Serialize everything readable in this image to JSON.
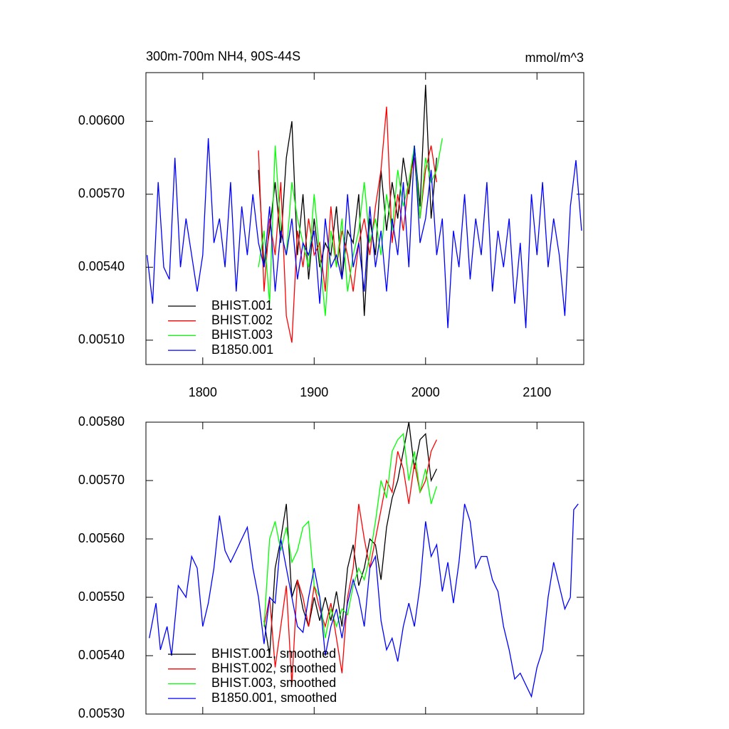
{
  "chart_data": [
    {
      "type": "line",
      "title": "300m-700m NH4, 90S-44S",
      "units": "mmol/m^3",
      "xlim": [
        1749,
        2142
      ],
      "xticks": [
        1800,
        1900,
        2000,
        2100
      ],
      "ylim": [
        0.005,
        0.0062
      ],
      "yticks": [
        {
          "value": 0.0051,
          "label": "0.00510"
        },
        {
          "value": 0.0054,
          "label": "0.00540"
        },
        {
          "value": 0.0057,
          "label": "0.00570"
        },
        {
          "value": 0.006,
          "label": "0.00600"
        }
      ],
      "legend": "lower left",
      "series": [
        {
          "name": "BHIST.001",
          "color": "#000000",
          "x": [
            1850,
            1855,
            1860,
            1865,
            1870,
            1875,
            1880,
            1885,
            1890,
            1895,
            1900,
            1905,
            1910,
            1915,
            1920,
            1925,
            1930,
            1935,
            1940,
            1945,
            1950,
            1955,
            1960,
            1965,
            1970,
            1975,
            1980,
            1985,
            1990,
            1995,
            2000,
            2005,
            2010
          ],
          "values": [
            0.0058,
            0.0054,
            0.00555,
            0.00575,
            0.0055,
            0.00585,
            0.006,
            0.00545,
            0.0057,
            0.00535,
            0.0056,
            0.0054,
            0.0055,
            0.00545,
            0.00565,
            0.00535,
            0.00555,
            0.0055,
            0.0057,
            0.0052,
            0.0056,
            0.00545,
            0.0058,
            0.00555,
            0.00575,
            0.0056,
            0.00585,
            0.0057,
            0.0059,
            0.00565,
            0.00615,
            0.0056,
            0.00585
          ]
        },
        {
          "name": "BHIST.002",
          "color": "#ff0000",
          "x": [
            1850,
            1855,
            1860,
            1865,
            1870,
            1875,
            1880,
            1885,
            1890,
            1895,
            1900,
            1905,
            1910,
            1915,
            1920,
            1925,
            1930,
            1935,
            1940,
            1945,
            1950,
            1955,
            1960,
            1965,
            1970,
            1975,
            1980,
            1985,
            1990,
            1995,
            2000,
            2005,
            2010
          ],
          "values": [
            0.00588,
            0.0053,
            0.0056,
            0.00545,
            0.00575,
            0.0052,
            0.00509,
            0.00555,
            0.0054,
            0.0056,
            0.00545,
            0.0055,
            0.0053,
            0.00565,
            0.0054,
            0.00555,
            0.00545,
            0.0053,
            0.0055,
            0.0056,
            0.00545,
            0.00565,
            0.0058,
            0.00606,
            0.0055,
            0.0057,
            0.00555,
            0.00575,
            0.00585,
            0.0056,
            0.0058,
            0.0059,
            0.00575
          ]
        },
        {
          "name": "BHIST.003",
          "color": "#00ff00",
          "x": [
            1850,
            1855,
            1860,
            1865,
            1870,
            1875,
            1880,
            1885,
            1890,
            1895,
            1900,
            1905,
            1910,
            1915,
            1920,
            1925,
            1930,
            1935,
            1940,
            1945,
            1950,
            1955,
            1960,
            1965,
            1970,
            1975,
            1980,
            1985,
            1990,
            1995,
            2000,
            2005,
            2010,
            2015
          ],
          "values": [
            0.0054,
            0.00555,
            0.00525,
            0.0059,
            0.00555,
            0.00545,
            0.00575,
            0.0056,
            0.0055,
            0.0054,
            0.0057,
            0.00545,
            0.0052,
            0.00555,
            0.0054,
            0.0056,
            0.0053,
            0.00545,
            0.00555,
            0.00575,
            0.0055,
            0.0056,
            0.00545,
            0.0057,
            0.00555,
            0.0058,
            0.00565,
            0.00575,
            0.0059,
            0.0056,
            0.00585,
            0.00575,
            0.0058,
            0.00593
          ]
        },
        {
          "name": "B1850.001",
          "color": "#0000ff",
          "x": [
            1750,
            1755,
            1760,
            1765,
            1770,
            1775,
            1780,
            1785,
            1790,
            1795,
            1800,
            1805,
            1810,
            1815,
            1820,
            1825,
            1830,
            1835,
            1840,
            1845,
            1850,
            1855,
            1860,
            1865,
            1870,
            1875,
            1880,
            1885,
            1890,
            1895,
            1900,
            1905,
            1910,
            1915,
            1920,
            1925,
            1930,
            1935,
            1940,
            1945,
            1950,
            1955,
            1960,
            1965,
            1970,
            1975,
            1980,
            1985,
            1990,
            1995,
            2000,
            2005,
            2010,
            2015,
            2020,
            2025,
            2030,
            2035,
            2040,
            2045,
            2050,
            2055,
            2060,
            2065,
            2070,
            2075,
            2080,
            2085,
            2090,
            2095,
            2100,
            2105,
            2110,
            2115,
            2120,
            2125,
            2130,
            2135,
            2140
          ],
          "values": [
            0.00545,
            0.00525,
            0.00575,
            0.0054,
            0.00535,
            0.00585,
            0.0054,
            0.0056,
            0.00545,
            0.0053,
            0.00545,
            0.00593,
            0.0055,
            0.0056,
            0.0054,
            0.00575,
            0.0053,
            0.00565,
            0.00545,
            0.0057,
            0.0055,
            0.0054,
            0.00565,
            0.0053,
            0.00555,
            0.00545,
            0.0056,
            0.00535,
            0.0055,
            0.00545,
            0.00555,
            0.00525,
            0.0056,
            0.0054,
            0.00545,
            0.00535,
            0.0057,
            0.0054,
            0.0055,
            0.0053,
            0.00565,
            0.0054,
            0.00555,
            0.0053,
            0.0056,
            0.00545,
            0.00575,
            0.0054,
            0.0059,
            0.0055,
            0.0056,
            0.0058,
            0.00545,
            0.0056,
            0.00515,
            0.00555,
            0.0054,
            0.0057,
            0.00535,
            0.0056,
            0.00545,
            0.00575,
            0.0053,
            0.00555,
            0.0054,
            0.0056,
            0.00525,
            0.0055,
            0.00515,
            0.0057,
            0.00545,
            0.00575,
            0.0054,
            0.0056,
            0.00545,
            0.0052,
            0.00565,
            0.00584,
            0.00555
          ]
        }
      ]
    },
    {
      "type": "line",
      "xlim": [
        1749,
        2142
      ],
      "ylim": [
        0.0053,
        0.0058
      ],
      "yticks": [
        {
          "value": 0.0053,
          "label": "0.00530"
        },
        {
          "value": 0.0054,
          "label": "0.00540"
        },
        {
          "value": 0.0055,
          "label": "0.00550"
        },
        {
          "value": 0.0056,
          "label": "0.00560"
        },
        {
          "value": 0.0057,
          "label": "0.00570"
        },
        {
          "value": 0.0058,
          "label": "0.00580"
        }
      ],
      "legend": "lower left",
      "series": [
        {
          "name": "BHIST.001, smoothed",
          "color": "#000000",
          "x": [
            1855,
            1860,
            1865,
            1870,
            1875,
            1880,
            1885,
            1890,
            1895,
            1900,
            1905,
            1910,
            1915,
            1920,
            1925,
            1930,
            1935,
            1940,
            1945,
            1950,
            1955,
            1960,
            1965,
            1970,
            1975,
            1980,
            1985,
            1990,
            1995,
            2000,
            2005,
            2010
          ],
          "values": [
            0.00546,
            0.0054,
            0.00555,
            0.0056,
            0.00566,
            0.0055,
            0.00553,
            0.00548,
            0.00545,
            0.0055,
            0.00546,
            0.0055,
            0.00546,
            0.00551,
            0.00545,
            0.00555,
            0.00559,
            0.00552,
            0.00555,
            0.0056,
            0.00559,
            0.00553,
            0.00562,
            0.00567,
            0.0057,
            0.00575,
            0.0058,
            0.00572,
            0.00577,
            0.00578,
            0.0057,
            0.00572
          ]
        },
        {
          "name": "BHIST.002, smoothed",
          "color": "#ff0000",
          "x": [
            1855,
            1860,
            1865,
            1870,
            1875,
            1880,
            1885,
            1890,
            1895,
            1900,
            1905,
            1910,
            1915,
            1920,
            1925,
            1930,
            1935,
            1940,
            1945,
            1950,
            1955,
            1960,
            1965,
            1970,
            1975,
            1980,
            1985,
            1990,
            1995,
            2000,
            2005,
            2010
          ],
          "values": [
            0.00545,
            0.0055,
            0.00538,
            0.00545,
            0.00552,
            0.00535,
            0.00553,
            0.0055,
            0.00545,
            0.00552,
            0.00548,
            0.00545,
            0.00549,
            0.00543,
            0.00537,
            0.0055,
            0.00555,
            0.00566,
            0.0056,
            0.00555,
            0.0056,
            0.00565,
            0.0057,
            0.00568,
            0.00575,
            0.00572,
            0.00566,
            0.00573,
            0.00568,
            0.0057,
            0.00575,
            0.00577
          ]
        },
        {
          "name": "BHIST.003, smoothed",
          "color": "#00ff00",
          "x": [
            1855,
            1860,
            1865,
            1870,
            1875,
            1880,
            1885,
            1890,
            1895,
            1900,
            1905,
            1910,
            1915,
            1920,
            1925,
            1930,
            1935,
            1940,
            1945,
            1950,
            1955,
            1960,
            1965,
            1970,
            1975,
            1980,
            1985,
            1990,
            1995,
            2000,
            2005,
            2010
          ],
          "values": [
            0.00545,
            0.0056,
            0.00563,
            0.00558,
            0.00562,
            0.00556,
            0.00558,
            0.00562,
            0.00563,
            0.00552,
            0.0055,
            0.00543,
            0.00548,
            0.00545,
            0.00548,
            0.00547,
            0.00552,
            0.00555,
            0.00553,
            0.00557,
            0.00563,
            0.0057,
            0.00567,
            0.00575,
            0.00577,
            0.00578,
            0.0057,
            0.00575,
            0.00568,
            0.00572,
            0.00566,
            0.00569
          ]
        },
        {
          "name": "B1850.001, smoothed",
          "color": "#0000ff",
          "x": [
            1752,
            1758,
            1762,
            1768,
            1772,
            1778,
            1785,
            1790,
            1795,
            1800,
            1805,
            1810,
            1815,
            1820,
            1825,
            1830,
            1835,
            1840,
            1845,
            1850,
            1855,
            1860,
            1865,
            1870,
            1875,
            1880,
            1885,
            1890,
            1895,
            1900,
            1905,
            1910,
            1915,
            1920,
            1925,
            1930,
            1935,
            1940,
            1945,
            1950,
            1955,
            1960,
            1965,
            1970,
            1975,
            1980,
            1985,
            1990,
            1995,
            2000,
            2005,
            2010,
            2015,
            2020,
            2025,
            2030,
            2035,
            2040,
            2045,
            2050,
            2055,
            2060,
            2065,
            2070,
            2075,
            2080,
            2085,
            2090,
            2095,
            2100,
            2105,
            2110,
            2115,
            2120,
            2125,
            2130,
            2133,
            2137
          ],
          "values": [
            0.00543,
            0.00549,
            0.00541,
            0.00545,
            0.0054,
            0.00552,
            0.0055,
            0.00557,
            0.00555,
            0.00545,
            0.00549,
            0.00555,
            0.00564,
            0.00558,
            0.00556,
            0.00558,
            0.0056,
            0.00562,
            0.00555,
            0.0055,
            0.00542,
            0.0055,
            0.00549,
            0.0056,
            0.00555,
            0.0055,
            0.00545,
            0.00544,
            0.0055,
            0.00555,
            0.0055,
            0.0054,
            0.00545,
            0.00548,
            0.00543,
            0.00549,
            0.00553,
            0.0055,
            0.00545,
            0.00555,
            0.00557,
            0.00546,
            0.00541,
            0.00543,
            0.00539,
            0.00545,
            0.00549,
            0.00545,
            0.00552,
            0.00563,
            0.00557,
            0.00559,
            0.00551,
            0.00556,
            0.00549,
            0.00556,
            0.00566,
            0.00563,
            0.00555,
            0.00557,
            0.00557,
            0.00553,
            0.00551,
            0.00545,
            0.00541,
            0.00536,
            0.00537,
            0.00535,
            0.00533,
            0.00538,
            0.00541,
            0.0055,
            0.00556,
            0.00552,
            0.00548,
            0.0055,
            0.00565,
            0.00566
          ]
        }
      ]
    }
  ]
}
